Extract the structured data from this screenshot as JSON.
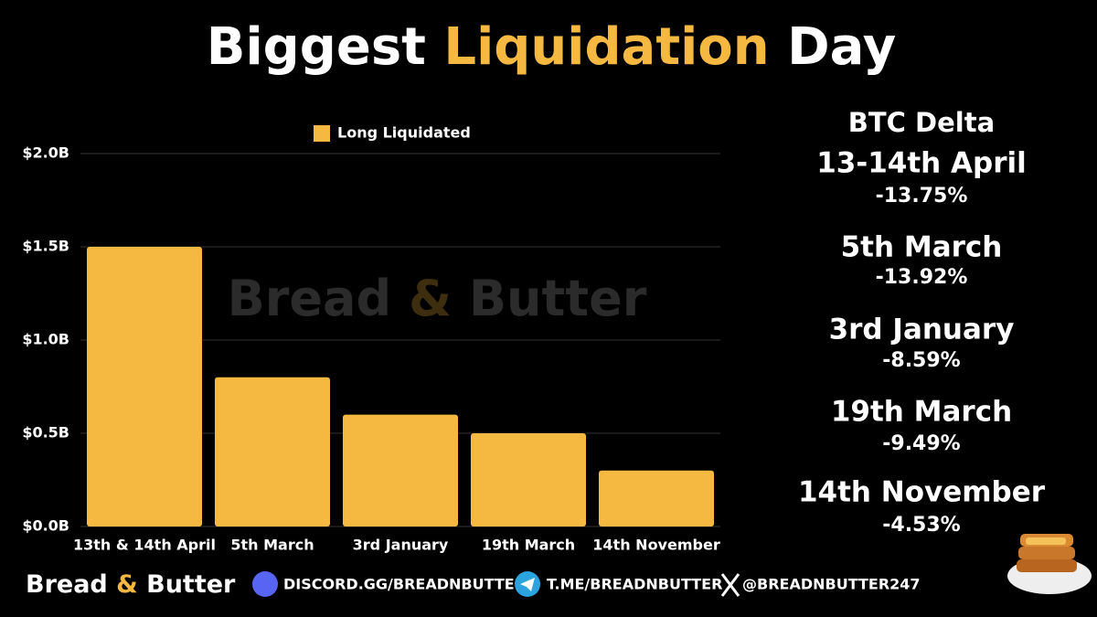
{
  "chart_data": {
    "type": "bar",
    "title": [
      "Biggest",
      "Liquidation",
      "Day"
    ],
    "categories": [
      "13th & 14th April",
      "5th March",
      "3rd January",
      "19th March",
      "14th November"
    ],
    "series": [
      {
        "name": "Long Liquidated",
        "color": "#f5b942",
        "values": [
          1.5,
          0.8,
          0.6,
          0.5,
          0.3
        ]
      }
    ],
    "ylim": [
      0,
      2.0
    ],
    "yticks": [
      {
        "value": 0,
        "label": "$0.0B"
      },
      {
        "value": 0.5,
        "label": "$0.5B"
      },
      {
        "value": 1.0,
        "label": "$1.0B"
      },
      {
        "value": 1.5,
        "label": "$1.5B"
      },
      {
        "value": 2.0,
        "label": "$2.0B"
      }
    ],
    "grid": true,
    "legend": "top",
    "watermark": [
      "Bread",
      "&",
      "Butter"
    ]
  },
  "btc_delta": {
    "title": "BTC Delta",
    "items": [
      {
        "label": "13-14th April",
        "change": "-13.75%"
      },
      {
        "label": "5th March",
        "change": "-13.92%"
      },
      {
        "label": "3rd January",
        "change": "-8.59%"
      },
      {
        "label": "19th March",
        "change": "-9.49%"
      },
      {
        "label": "14th November",
        "change": "-4.53%"
      }
    ]
  },
  "footer": {
    "brand": [
      "Bread",
      "&",
      "Butter"
    ],
    "discord": "DISCORD.GG/BREADNBUTTER",
    "telegram": "T.ME/BREADNBUTTER",
    "x": "@BREADNBUTTER247"
  }
}
